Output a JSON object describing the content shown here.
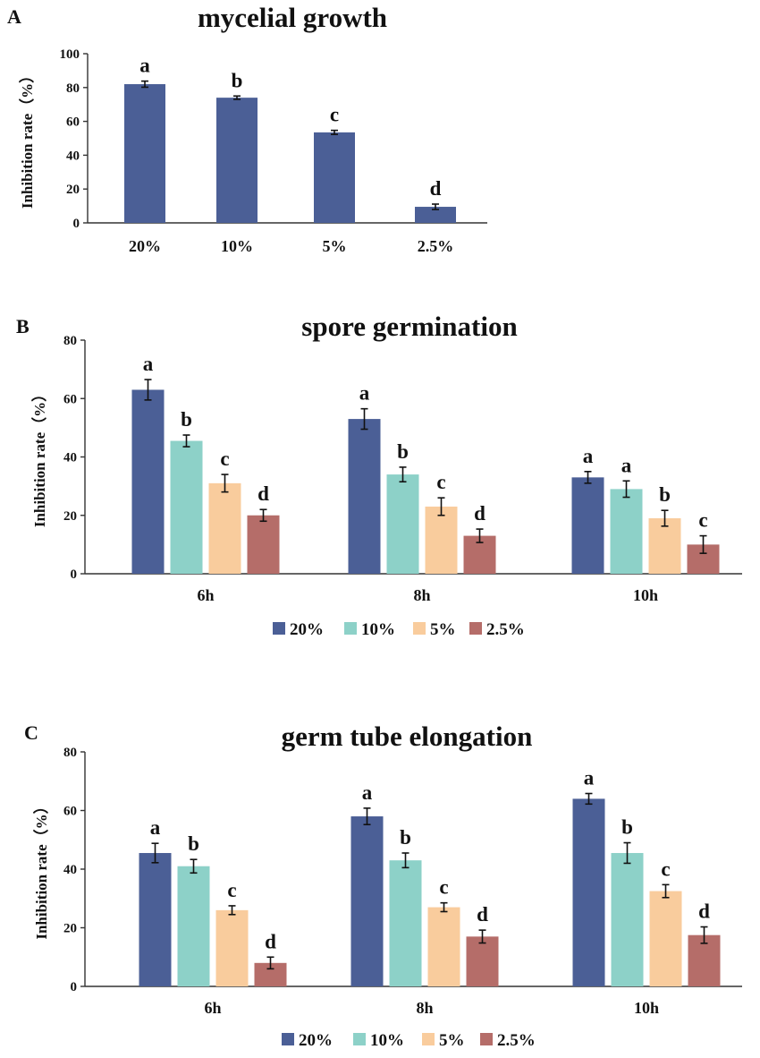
{
  "chart_data": [
    {
      "panel": "A",
      "type": "bar",
      "title": "mycelial growth",
      "ylabel": "Inhibition rate（%）",
      "xlabel": "",
      "ylim": [
        0,
        100
      ],
      "yticks": [
        0,
        20,
        40,
        60,
        80,
        100
      ],
      "categories": [
        "20%",
        "10%",
        "5%",
        "2.5%"
      ],
      "series": [
        {
          "name": "",
          "color": "#4b5f96",
          "values": [
            82,
            74,
            53.5,
            9.5
          ],
          "errors": [
            1.8,
            1.0,
            1.2,
            1.6
          ],
          "letters": [
            "a",
            "b",
            "c",
            "d"
          ]
        }
      ],
      "legend": []
    },
    {
      "panel": "B",
      "type": "bar",
      "title": "spore germination",
      "ylabel": "Inhibition rate（%）",
      "xlabel": "",
      "ylim": [
        0,
        80
      ],
      "yticks": [
        0,
        20,
        40,
        60,
        80
      ],
      "categories": [
        "6h",
        "8h",
        "10h"
      ],
      "series": [
        {
          "name": "20%",
          "color": "#4b5f96",
          "values": [
            63,
            53,
            33
          ],
          "errors": [
            3.5,
            3.5,
            2.0
          ],
          "letters": [
            "a",
            "a",
            "a"
          ]
        },
        {
          "name": "10%",
          "color": "#8dd1c8",
          "values": [
            45.5,
            34,
            29
          ],
          "errors": [
            2.0,
            2.5,
            2.8
          ],
          "letters": [
            "b",
            "b",
            "a"
          ]
        },
        {
          "name": "5%",
          "color": "#f9cc9d",
          "values": [
            31,
            23,
            19
          ],
          "errors": [
            3.0,
            3.0,
            2.7
          ],
          "letters": [
            "c",
            "c",
            "b"
          ]
        },
        {
          "name": "2.5%",
          "color": "#b56d69",
          "values": [
            20,
            13,
            10
          ],
          "errors": [
            2.0,
            2.3,
            3.0
          ],
          "letters": [
            "d",
            "d",
            "c"
          ]
        }
      ],
      "legend": [
        "20%",
        "10%",
        "5%",
        "2.5%"
      ]
    },
    {
      "panel": "C",
      "type": "bar",
      "title": "germ tube elongation",
      "ylabel": "Inhibition rate（%）",
      "xlabel": "",
      "ylim": [
        0,
        80
      ],
      "yticks": [
        0,
        20,
        40,
        60,
        80
      ],
      "categories": [
        "6h",
        "8h",
        "10h"
      ],
      "series": [
        {
          "name": "20%",
          "color": "#4b5f96",
          "values": [
            45.5,
            58,
            64
          ],
          "errors": [
            3.3,
            2.8,
            1.8
          ],
          "letters": [
            "a",
            "a",
            "a"
          ]
        },
        {
          "name": "10%",
          "color": "#8dd1c8",
          "values": [
            41,
            43,
            45.5
          ],
          "errors": [
            2.3,
            2.5,
            3.5
          ],
          "letters": [
            "b",
            "b",
            "b"
          ]
        },
        {
          "name": "5%",
          "color": "#f9cc9d",
          "values": [
            26,
            27,
            32.5
          ],
          "errors": [
            1.5,
            1.5,
            2.2
          ],
          "letters": [
            "c",
            "c",
            "c"
          ]
        },
        {
          "name": "2.5%",
          "color": "#b56d69",
          "values": [
            8,
            17,
            17.5
          ],
          "errors": [
            2.0,
            2.2,
            2.8
          ],
          "letters": [
            "d",
            "d",
            "d"
          ]
        }
      ],
      "legend": [
        "20%",
        "10%",
        "5%",
        "2.5%"
      ]
    }
  ]
}
